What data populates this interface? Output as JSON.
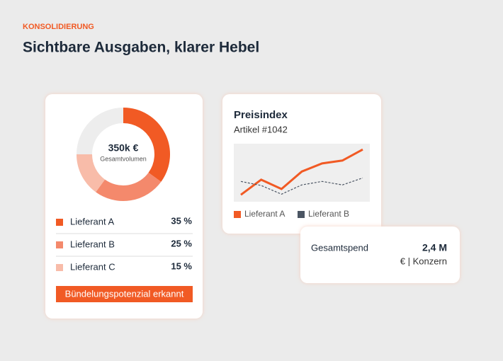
{
  "header": {
    "eyebrow": "KONSOLIDIERUNG",
    "title": "Sichtbare Ausgaben, klarer Hebel"
  },
  "chart_data": [
    {
      "type": "pie",
      "center_value": "350k €",
      "center_label": "Gesamtvolumen",
      "categories": [
        "Lieferant A",
        "Lieferant B",
        "Lieferant C"
      ],
      "values": [
        35,
        25,
        15
      ],
      "value_labels": [
        "35 %",
        "25 %",
        "15 %"
      ],
      "colors": [
        "#f15a24",
        "#f4896c",
        "#f8bca9"
      ],
      "track_color": "#ededed",
      "annotation": "Bündelungspotenzial erkannt"
    },
    {
      "type": "line",
      "title": "Preisindex",
      "subtitle": "Artikel #1042",
      "ylim": [
        0,
        100
      ],
      "series": [
        {
          "name": "Lieferant A",
          "color": "#f15a24",
          "values": [
            12,
            38,
            22,
            52,
            66,
            71,
            90
          ]
        },
        {
          "name": "Lieferant B",
          "color": "#4b5563",
          "values": [
            35,
            28,
            13,
            29,
            35,
            29,
            41
          ]
        }
      ]
    }
  ],
  "callout": {
    "label": "Gesamtspend",
    "value": "2,4 M",
    "unit": "€ | Konzern"
  }
}
